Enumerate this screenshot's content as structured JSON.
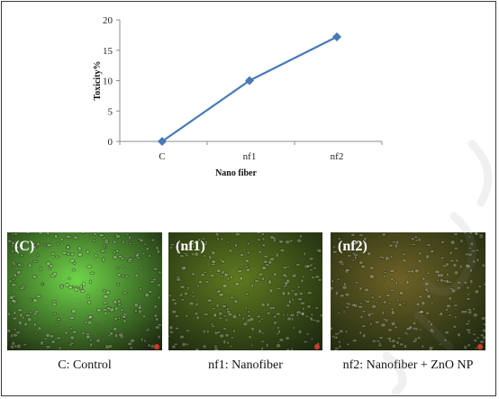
{
  "chart_data": {
    "type": "line",
    "categories": [
      "C",
      "nf1",
      "nf2"
    ],
    "series": [
      {
        "values": [
          0,
          10,
          17.2
        ]
      }
    ],
    "xlabel": "Nano fiber",
    "ylabel": "Toxicity%",
    "ylim": [
      0,
      20
    ],
    "yticks": [
      "0",
      "5",
      "10",
      "15",
      "20"
    ],
    "grid": false,
    "marker": "diamond",
    "line_color": "#4a7ab8"
  },
  "panels": [
    {
      "label": "(C)",
      "caption": "C: Control",
      "tint": "#6fd64a"
    },
    {
      "label": "(nf1)",
      "caption": "nf1: Nanofiber",
      "tint": "#5f7a20"
    },
    {
      "label": "(nf2)",
      "caption": "nf2: Nanofiber + ZnO NP",
      "tint": "#6e6226"
    }
  ]
}
